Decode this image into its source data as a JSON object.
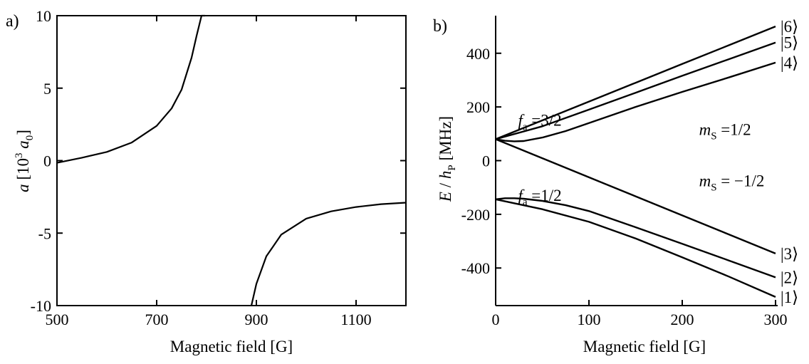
{
  "chart_data": [
    {
      "panel_label": "a)",
      "type": "line",
      "xlabel": "Magnetic field [G]",
      "ylabel": "a [10³ a₀]",
      "ylabel_parts": {
        "var": "a",
        "open": " [10",
        "sup": "3",
        "mid": " a",
        "sub": "0",
        "close": "]"
      },
      "xlim": [
        500,
        1200
      ],
      "ylim": [
        -10,
        10
      ],
      "xticks": [
        500,
        700,
        900,
        1100
      ],
      "yticks": [
        10,
        5,
        0,
        -5,
        -10
      ],
      "ytick_labels": [
        "10",
        "5",
        "0",
        "-5",
        "-10"
      ],
      "grid": false,
      "series": [
        {
          "x": [
            500,
            550,
            600,
            650,
            700,
            730,
            750,
            770,
            780,
            790,
            797
          ],
          "y": [
            -0.15,
            0.2,
            0.6,
            1.25,
            2.4,
            3.6,
            4.9,
            7.1,
            8.6,
            10.0,
            10.0
          ]
        },
        {
          "x": [
            890,
            900,
            920,
            950,
            1000,
            1050,
            1100,
            1150,
            1200
          ],
          "y": [
            -10,
            -8.5,
            -6.6,
            -5.1,
            -4.0,
            -3.5,
            -3.2,
            -3.0,
            -2.9
          ]
        }
      ]
    },
    {
      "panel_label": "b)",
      "type": "line",
      "xlabel": "Magnetic field [G]",
      "ylabel": "E / h_P [MHz]",
      "ylabel_parts": {
        "var": "E",
        "slash": " / ",
        "h": "h",
        "sub": "P",
        "unit": " [MHz]"
      },
      "xlim": [
        0,
        300
      ],
      "ylim": [
        -540,
        540
      ],
      "xticks": [
        0,
        100,
        200,
        300
      ],
      "yticks": [
        400,
        200,
        0,
        -200,
        -400
      ],
      "ytick_labels": [
        "400",
        "200",
        "0",
        "-200",
        "-400"
      ],
      "grid": false,
      "series": [
        {
          "label": "|6⟩",
          "x": [
            0,
            50,
            100,
            150,
            200,
            250,
            300
          ],
          "y": [
            80,
            150,
            220,
            290,
            360,
            430,
            500
          ]
        },
        {
          "label": "|5⟩",
          "x": [
            0,
            50,
            100,
            150,
            200,
            250,
            300
          ],
          "y": [
            80,
            128,
            190,
            253,
            316,
            378,
            440
          ]
        },
        {
          "label": "|4⟩",
          "x": [
            0,
            10,
            20,
            30,
            50,
            75,
            100,
            150,
            200,
            250,
            300
          ],
          "y": [
            80,
            74,
            72,
            73,
            86,
            110,
            140,
            200,
            256,
            310,
            365
          ]
        },
        {
          "label": "|3⟩",
          "x": [
            0,
            50,
            100,
            150,
            200,
            250,
            300
          ],
          "y": [
            80,
            9,
            -62,
            -133,
            -204,
            -275,
            -346
          ]
        },
        {
          "label": "|2⟩",
          "x": [
            0,
            10,
            20,
            30,
            50,
            75,
            100,
            150,
            200,
            250,
            300
          ],
          "y": [
            -144,
            -140,
            -140,
            -142,
            -150,
            -166,
            -188,
            -248,
            -310,
            -372,
            -435
          ]
        },
        {
          "label": "|1⟩",
          "x": [
            0,
            50,
            100,
            150,
            200,
            250,
            300
          ],
          "y": [
            -144,
            -181,
            -228,
            -290,
            -360,
            -432,
            -508
          ]
        }
      ],
      "annotations": [
        {
          "var": "f",
          "sub": "a",
          "eq": " =3/2",
          "at": [
            24,
            130
          ]
        },
        {
          "var": "f",
          "sub": "a",
          "eq": " =1/2",
          "at": [
            24,
            -150
          ]
        },
        {
          "var": "m",
          "sub": "S",
          "eq": " =1/2",
          "at": [
            218,
            95
          ]
        },
        {
          "var": "m",
          "sub": "S",
          "eq": " = −1/2",
          "at": [
            218,
            -95
          ]
        }
      ]
    }
  ]
}
